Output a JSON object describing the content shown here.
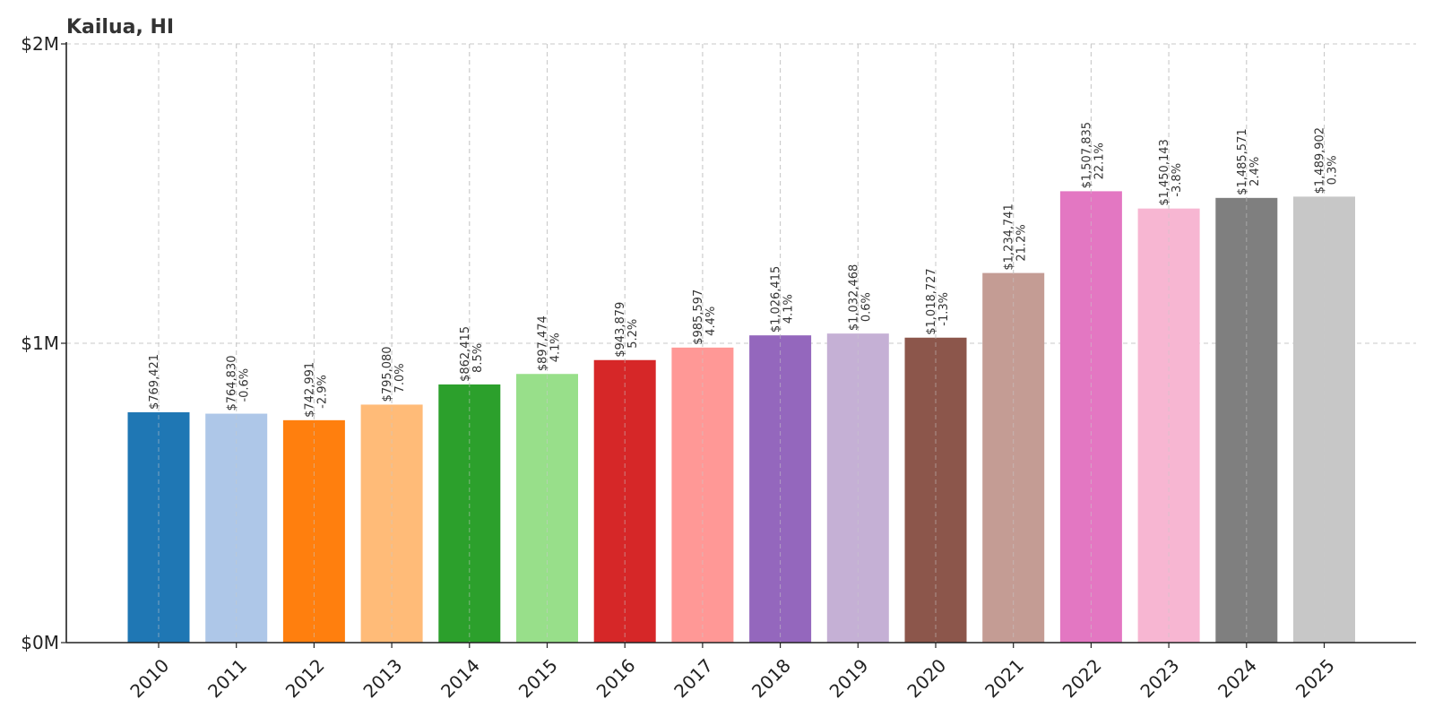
{
  "chart_data": {
    "type": "bar",
    "title": "Kailua, HI",
    "xlabel": "",
    "ylabel": "",
    "categories": [
      "2010",
      "2011",
      "2012",
      "2013",
      "2014",
      "2015",
      "2016",
      "2017",
      "2018",
      "2019",
      "2020",
      "2021",
      "2022",
      "2023",
      "2024",
      "2025"
    ],
    "values": [
      769421,
      764830,
      742991,
      795080,
      862415,
      897474,
      943879,
      985597,
      1026415,
      1032468,
      1018727,
      1234741,
      1507835,
      1450143,
      1485571,
      1489902
    ],
    "value_labels": [
      "$769,421",
      "$764,830",
      "$742,991",
      "$795,080",
      "$862,415",
      "$897,474",
      "$943,879",
      "$985,597",
      "$1,026,415",
      "$1,032,468",
      "$1,018,727",
      "$1,234,741",
      "$1,507,835",
      "$1,450,143",
      "$1,485,571",
      "$1,489,902"
    ],
    "change_labels": [
      "",
      "-0.6%",
      "-2.9%",
      "7.0%",
      "8.5%",
      "4.1%",
      "5.2%",
      "4.4%",
      "4.1%",
      "0.6%",
      "-1.3%",
      "21.2%",
      "22.1%",
      "-3.8%",
      "2.4%",
      "0.3%"
    ],
    "colors": [
      "#1f77b4",
      "#aec7e8",
      "#ff7f0e",
      "#ffbb78",
      "#2ca02c",
      "#98df8a",
      "#d62728",
      "#ff9896",
      "#9467bd",
      "#c5b0d5",
      "#8c564b",
      "#c49c94",
      "#e377c2",
      "#f7b6d2",
      "#7f7f7f",
      "#c7c7c7"
    ],
    "ylim": [
      0,
      2000000
    ],
    "yticks": [
      0,
      1000000,
      2000000
    ],
    "ytick_labels": [
      "$0M",
      "$1M",
      "$2M"
    ],
    "grid": true,
    "legend": "none"
  }
}
